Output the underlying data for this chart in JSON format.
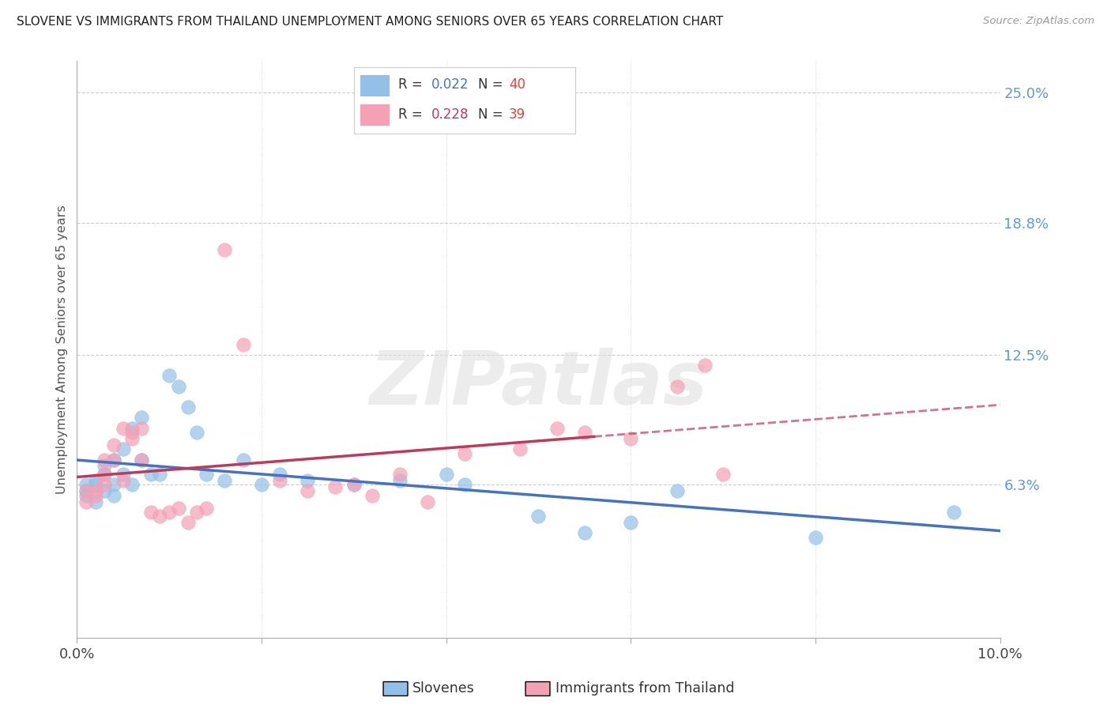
{
  "title": "SLOVENE VS IMMIGRANTS FROM THAILAND UNEMPLOYMENT AMONG SENIORS OVER 65 YEARS CORRELATION CHART",
  "source": "Source: ZipAtlas.com",
  "ylabel": "Unemployment Among Seniors over 65 years",
  "x_min": 0.0,
  "x_max": 0.1,
  "y_min": -0.01,
  "y_max": 0.265,
  "y_tick_values_right": [
    0.063,
    0.125,
    0.188,
    0.25
  ],
  "y_tick_labels_right": [
    "6.3%",
    "12.5%",
    "18.8%",
    "25.0%"
  ],
  "color_slovene": "#92C0E8",
  "color_thailand": "#F4A0B5",
  "color_slovene_line": "#4472C4",
  "color_thailand_line": "#C0395A",
  "color_right_labels": "#5B9BD5",
  "color_grid": "#CCCCCC",
  "watermark_text": "ZIPatlas",
  "background_color": "#FFFFFF",
  "slovene_x": [
    0.001,
    0.001,
    0.001,
    0.002,
    0.002,
    0.002,
    0.003,
    0.003,
    0.003,
    0.004,
    0.004,
    0.004,
    0.005,
    0.005,
    0.006,
    0.006,
    0.007,
    0.007,
    0.008,
    0.009,
    0.01,
    0.011,
    0.012,
    0.013,
    0.014,
    0.016,
    0.018,
    0.02,
    0.022,
    0.025,
    0.03,
    0.035,
    0.04,
    0.042,
    0.05,
    0.055,
    0.06,
    0.065,
    0.08,
    0.095
  ],
  "slovene_y": [
    0.058,
    0.063,
    0.06,
    0.065,
    0.063,
    0.055,
    0.072,
    0.068,
    0.06,
    0.075,
    0.063,
    0.058,
    0.08,
    0.068,
    0.09,
    0.063,
    0.095,
    0.075,
    0.068,
    0.068,
    0.115,
    0.11,
    0.1,
    0.088,
    0.068,
    0.065,
    0.075,
    0.063,
    0.068,
    0.065,
    0.063,
    0.065,
    0.068,
    0.063,
    0.048,
    0.04,
    0.045,
    0.06,
    0.038,
    0.05
  ],
  "thailand_x": [
    0.001,
    0.001,
    0.002,
    0.002,
    0.003,
    0.003,
    0.003,
    0.004,
    0.004,
    0.005,
    0.005,
    0.006,
    0.006,
    0.007,
    0.007,
    0.008,
    0.009,
    0.01,
    0.011,
    0.012,
    0.013,
    0.014,
    0.016,
    0.018,
    0.022,
    0.025,
    0.028,
    0.03,
    0.032,
    0.035,
    0.038,
    0.042,
    0.048,
    0.052,
    0.055,
    0.06,
    0.065,
    0.068,
    0.07
  ],
  "thailand_y": [
    0.055,
    0.06,
    0.06,
    0.058,
    0.068,
    0.075,
    0.063,
    0.075,
    0.082,
    0.09,
    0.065,
    0.085,
    0.088,
    0.09,
    0.075,
    0.05,
    0.048,
    0.05,
    0.052,
    0.045,
    0.05,
    0.052,
    0.175,
    0.13,
    0.065,
    0.06,
    0.062,
    0.063,
    0.058,
    0.068,
    0.055,
    0.078,
    0.08,
    0.09,
    0.088,
    0.085,
    0.11,
    0.12,
    0.068
  ]
}
